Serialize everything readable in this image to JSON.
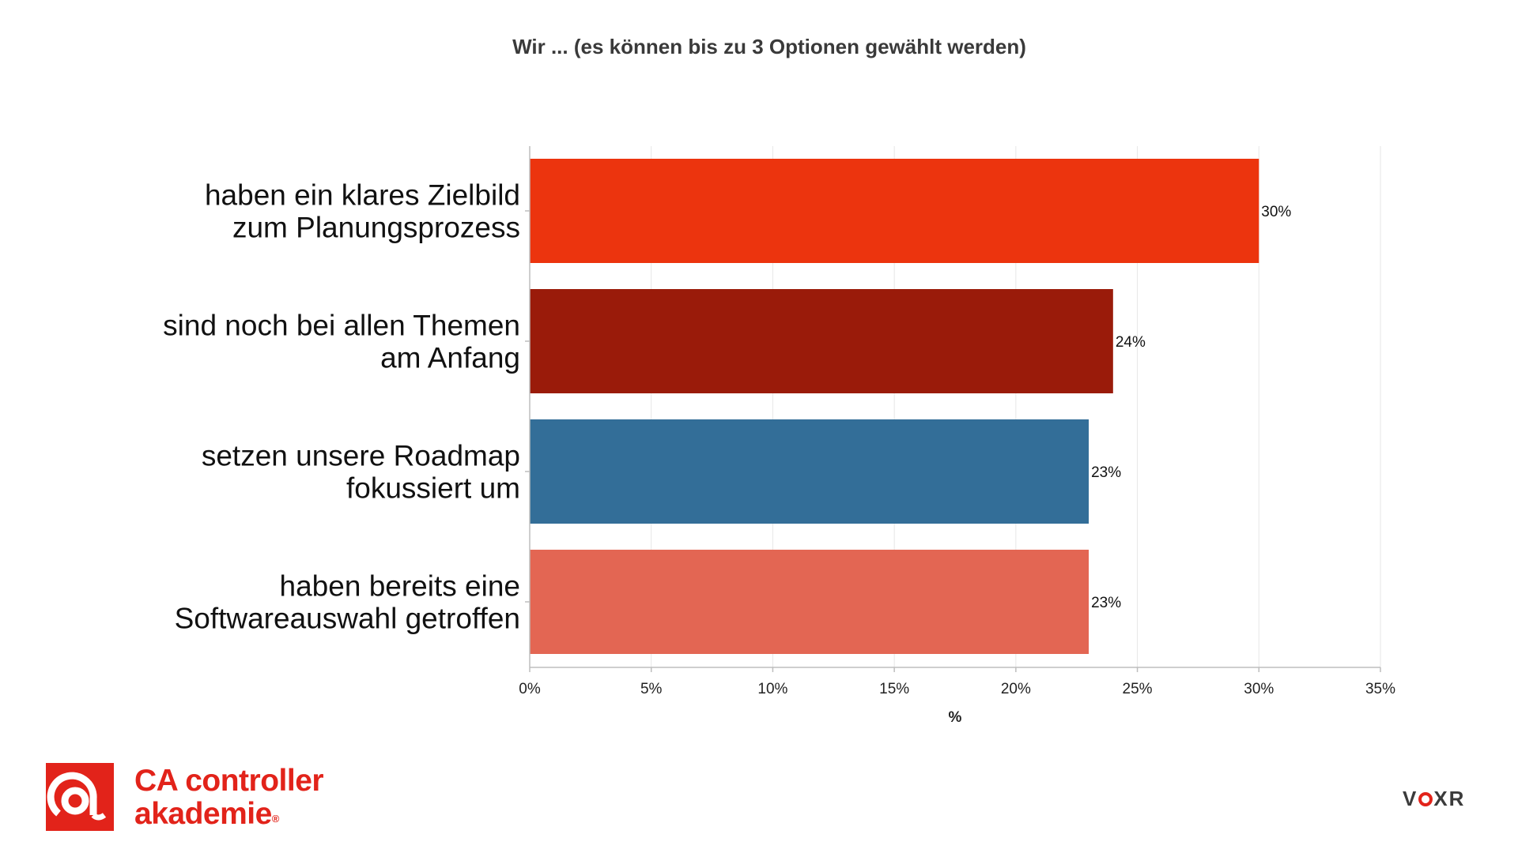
{
  "chart_data": {
    "type": "bar",
    "orientation": "horizontal",
    "title": "Wir ... (es können bis zu 3 Optionen gewählt werden)",
    "xlabel": "%",
    "ylabel": "",
    "xlim": [
      0,
      35
    ],
    "x_ticks": [
      "0%",
      "5%",
      "10%",
      "15%",
      "20%",
      "25%",
      "30%",
      "35%"
    ],
    "grid": true,
    "categories": [
      [
        "haben ein klares Zielbild",
        "zum Planungsprozess"
      ],
      [
        "sind noch bei allen Themen",
        "am Anfang"
      ],
      [
        "setzen unsere Roadmap",
        "fokussiert um"
      ],
      [
        "haben bereits eine",
        "Softwareauswahl getroffen"
      ]
    ],
    "values": [
      30,
      24,
      23,
      23
    ],
    "value_labels": [
      "30%",
      "24%",
      "23%",
      "23%"
    ],
    "colors": [
      "#ec340e",
      "#9a1b0a",
      "#336e98",
      "#e36653"
    ]
  },
  "branding": {
    "left_logo": {
      "line1": "CA controller",
      "line2": "akademie",
      "mark": "®"
    },
    "right_logo": {
      "pre": "V",
      "post": "XR"
    }
  }
}
